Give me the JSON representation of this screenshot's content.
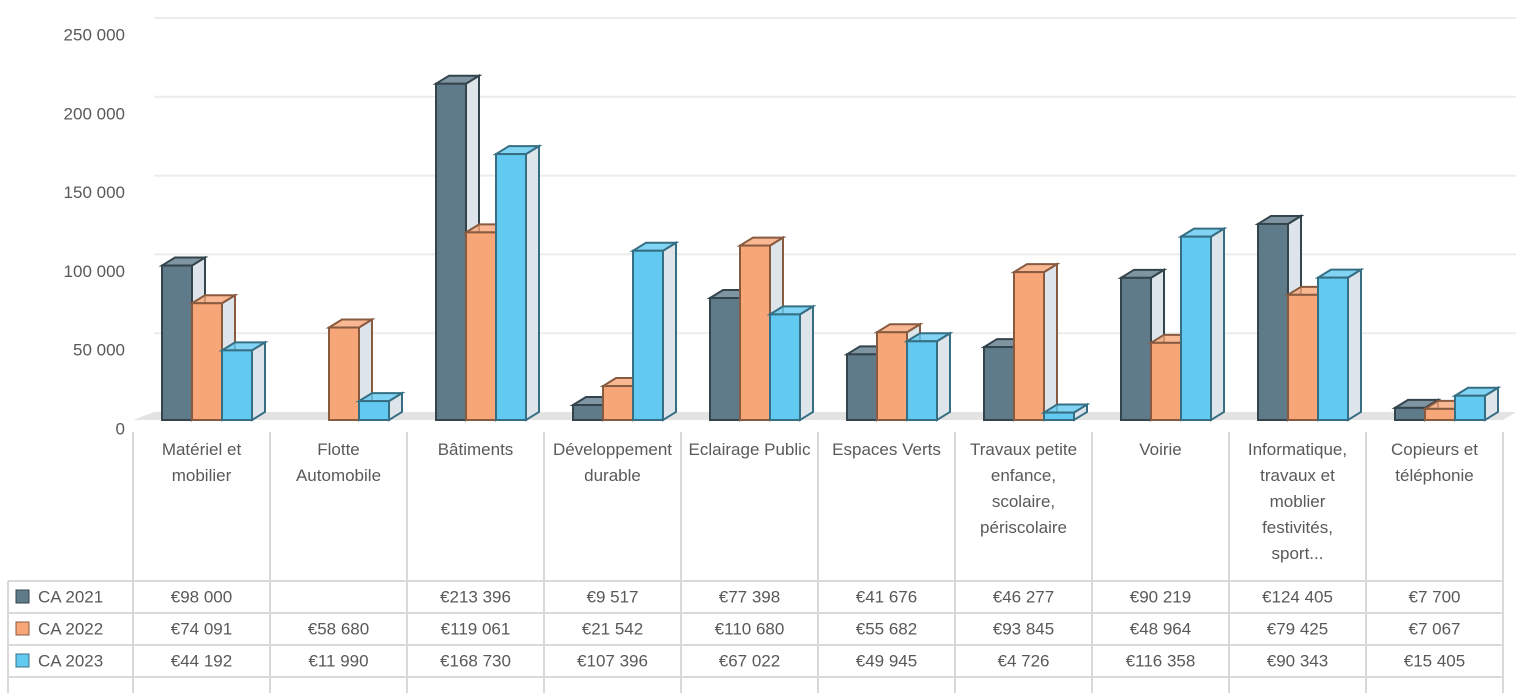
{
  "chart_data": {
    "type": "bar",
    "categories": [
      "Matériel et mobilier",
      "Flotte Automobile",
      "Bâtiments",
      "Développement durable",
      "Eclairage Public",
      "Espaces Verts",
      "Travaux petite enfance, scolaire, périscolaire",
      "Voirie",
      "Informatique, travaux et moblier festivités, sport...",
      "Copieurs et téléphonie"
    ],
    "series": [
      {
        "name": "CA 2021",
        "color": "#5f7b8a",
        "values": [
          98000,
          null,
          213396,
          9517,
          77398,
          41676,
          46277,
          90219,
          124405,
          7700
        ],
        "value_labels": [
          "€98 000",
          null,
          "€213 396",
          "€9 517",
          "€77 398",
          "€41 676",
          "€46 277",
          "€90 219",
          "€124 405",
          "€7 700"
        ]
      },
      {
        "name": "CA 2022",
        "color": "#f7a677",
        "values": [
          74091,
          58680,
          119061,
          21542,
          110680,
          55682,
          93845,
          48964,
          79425,
          7067
        ],
        "value_labels": [
          "€74 091",
          "€58 680",
          "€119 061",
          "€21 542",
          "€110 680",
          "€55 682",
          "€93 845",
          "€48 964",
          "€79 425",
          "€7 067"
        ]
      },
      {
        "name": "CA 2023",
        "color": "#62c9f0",
        "values": [
          44192,
          11990,
          168730,
          107396,
          67022,
          49945,
          4726,
          116358,
          90343,
          15405
        ],
        "value_labels": [
          "€44 192",
          "€11 990",
          "€168 730",
          "€107 396",
          "€67 022",
          "€49 945",
          "€4 726",
          "€116 358",
          "€90 343",
          "€15 405"
        ]
      }
    ],
    "ylim": [
      0,
      250000
    ],
    "yticks": [
      0,
      {
        "value": 50000,
        "label": "50 000"
      },
      {
        "value": 100000,
        "label": "100 000"
      },
      {
        "value": 150000,
        "label": "150 000"
      },
      {
        "value": 200000,
        "label": "200 000"
      },
      {
        "value": 250000,
        "label": "250 000"
      }
    ],
    "grid": true,
    "data_table": true
  }
}
